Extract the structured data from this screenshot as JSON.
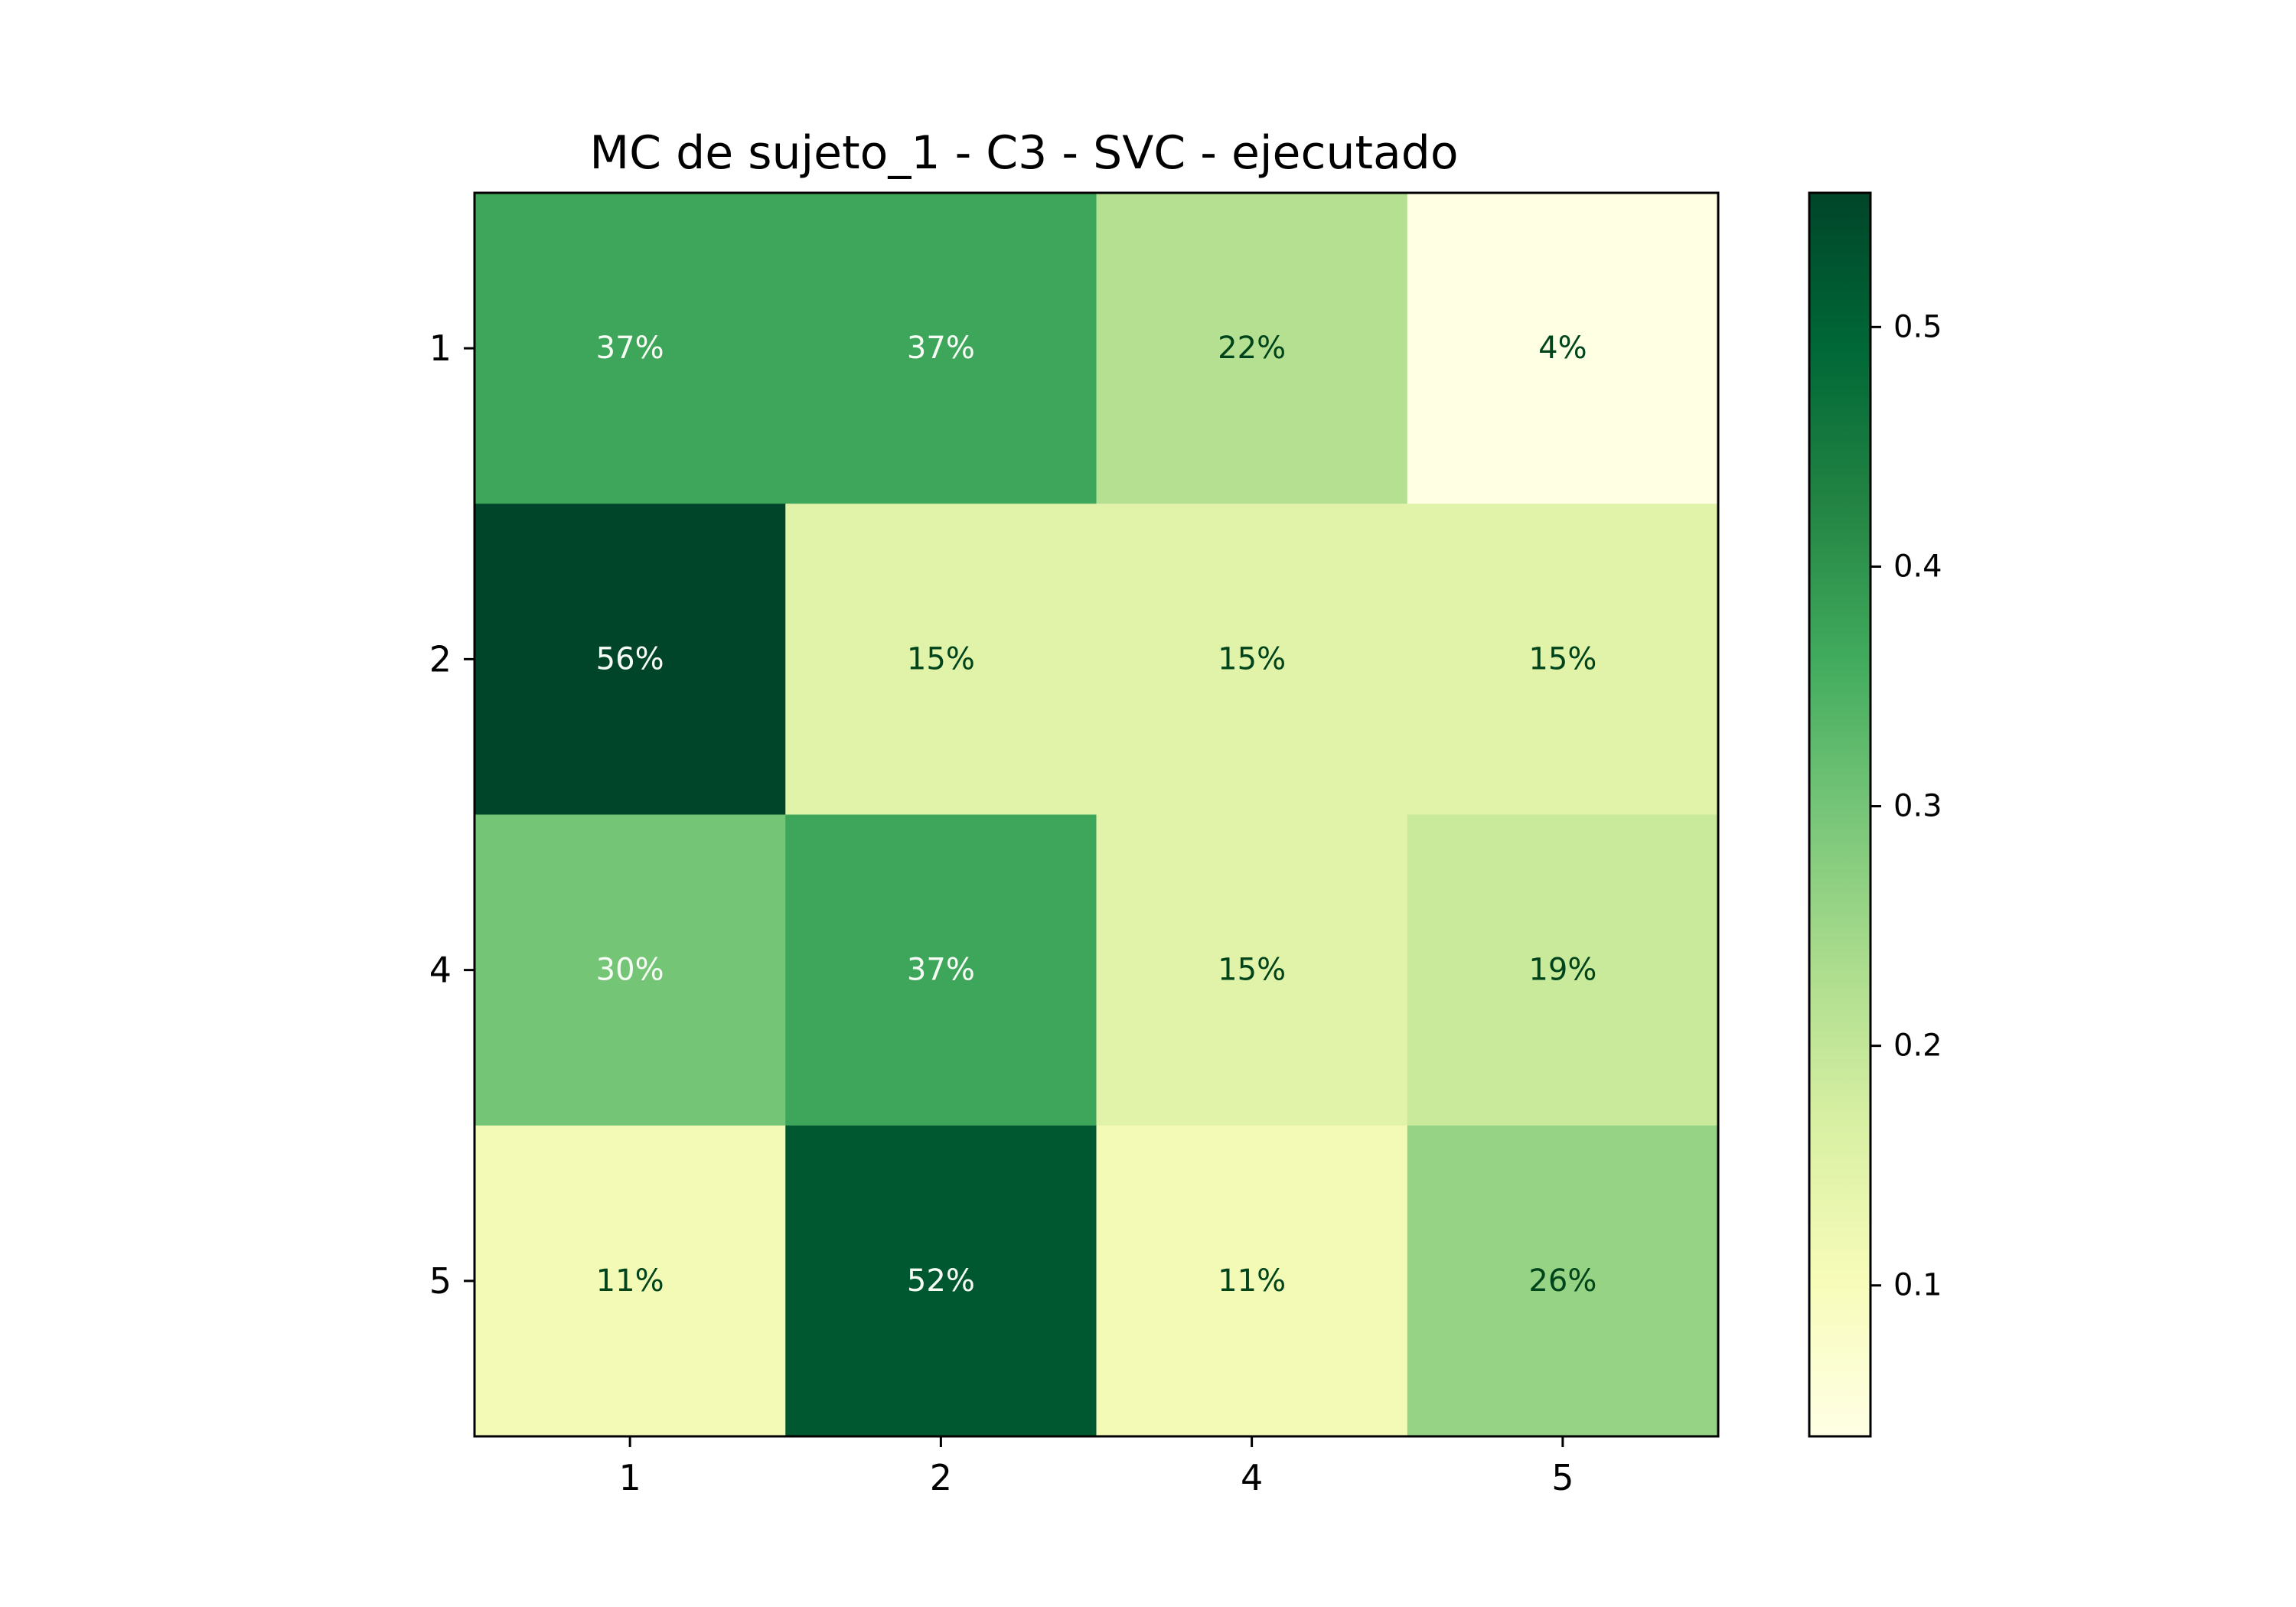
{
  "chart_data": {
    "type": "heatmap",
    "title": "MC de sujeto_1 - C3 - SVC - ejecutado",
    "xlabel": "",
    "ylabel": "",
    "x_categories": [
      "1",
      "2",
      "4",
      "5"
    ],
    "y_categories": [
      "1",
      "2",
      "4",
      "5"
    ],
    "values": [
      [
        0.37,
        0.37,
        0.22,
        0.04
      ],
      [
        0.56,
        0.15,
        0.15,
        0.15
      ],
      [
        0.3,
        0.37,
        0.15,
        0.19
      ],
      [
        0.11,
        0.52,
        0.11,
        0.26
      ]
    ],
    "cell_labels": [
      [
        "37%",
        "37%",
        "22%",
        "4%"
      ],
      [
        "56%",
        "15%",
        "15%",
        "15%"
      ],
      [
        "30%",
        "37%",
        "15%",
        "19%"
      ],
      [
        "11%",
        "52%",
        "11%",
        "26%"
      ]
    ],
    "colorbar": {
      "colormap": "YlGn",
      "range": [
        0.037,
        0.556
      ],
      "ticks": [
        0.1,
        0.2,
        0.3,
        0.4,
        0.5
      ],
      "tick_labels": [
        "0.1",
        "0.2",
        "0.3",
        "0.4",
        "0.5"
      ]
    },
    "colors": {
      "light_text": "#f7fcf5",
      "dark_text": "#00441b"
    },
    "grid": false
  }
}
